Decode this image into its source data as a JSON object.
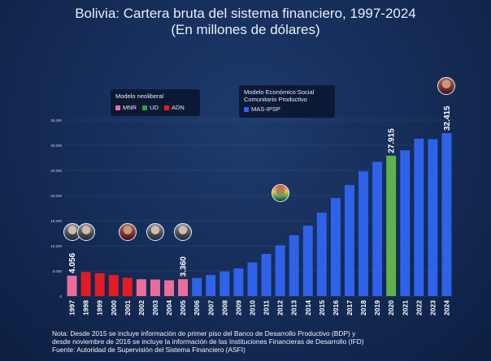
{
  "title_line1": "Bolivia: Cartera bruta del sistema financiero, 1997-2024",
  "title_line2": "(En millones de dólares)",
  "legend": {
    "neoliberal_title": "Modelo neoliberal",
    "neoliberal_items": [
      {
        "label": "MNR",
        "color": "#ec6d9b"
      },
      {
        "label": "UD",
        "color": "#2ea043"
      },
      {
        "label": "ADN",
        "color": "#e31b23"
      }
    ],
    "social_title_line1": "Modelo Económico Social",
    "social_title_line2": "Comunitario Productivo",
    "social_items": [
      {
        "label": "MAS-IPSP",
        "color": "#2f62e8"
      }
    ]
  },
  "notes": [
    "Nota: Desde 2015 se incluye información de primer piso del Banco de Desarrollo Productivo (BDP) y",
    "desde noviembre de 2016 se incluye la información de las Instituciones Financieras de Desarrollo (IFD)",
    "Fuente: Autoridad de Supervisión del Sistema Financiero (ASFI)"
  ],
  "chart_data": {
    "type": "bar",
    "title": "Bolivia: Cartera bruta del sistema financiero, 1997-2024",
    "subtitle": "(En millones de dólares)",
    "categories": [
      "1997",
      "1998",
      "1999",
      "2000",
      "2001",
      "2002",
      "2003",
      "2004",
      "2005",
      "2006",
      "2007",
      "2008",
      "2009",
      "2010",
      "2011",
      "2012",
      "2013",
      "2014",
      "2015",
      "2016",
      "2017",
      "2018",
      "2019",
      "2020",
      "2021",
      "2022",
      "2023",
      "2024"
    ],
    "values": [
      4056,
      4800,
      4550,
      4200,
      3650,
      3350,
      3300,
      3150,
      3360,
      3600,
      4200,
      4900,
      5500,
      6700,
      8400,
      10100,
      12100,
      14000,
      16600,
      19500,
      22100,
      24800,
      26700,
      27915,
      29000,
      31300,
      31200,
      32415
    ],
    "bar_colors": [
      "#ec6d9b",
      "#e31b23",
      "#e31b23",
      "#e31b23",
      "#e31b23",
      "#ec6d9b",
      "#ec6d9b",
      "#ec6d9b",
      "#ec6d9b",
      "#2f62e8",
      "#2f62e8",
      "#2f62e8",
      "#2f62e8",
      "#2f62e8",
      "#2f62e8",
      "#2f62e8",
      "#2f62e8",
      "#2f62e8",
      "#2f62e8",
      "#2f62e8",
      "#2f62e8",
      "#2f62e8",
      "#2f62e8",
      "#5fb14d",
      "#2f62e8",
      "#2f62e8",
      "#2f62e8",
      "#2f62e8"
    ],
    "data_labels": [
      {
        "category": "1997",
        "text": "4.056"
      },
      {
        "category": "2005",
        "text": "3.360"
      },
      {
        "category": "2020",
        "text": "27.915"
      },
      {
        "category": "2024",
        "text": "32.415"
      }
    ],
    "yticks": [
      0,
      5000,
      10000,
      15000,
      20000,
      25000,
      30000,
      35000
    ],
    "ytick_labels": [
      "0",
      "5.000",
      "10.000",
      "15.000",
      "20.000",
      "25.000",
      "30.000",
      "35.000"
    ],
    "ylim": [
      0,
      35000
    ],
    "grid": true,
    "portraits": [
      {
        "category": "1997",
        "style": "p-neutral"
      },
      {
        "category": "1998",
        "style": "p-neutral"
      },
      {
        "category": "2001",
        "style": "p-red"
      },
      {
        "category": "2003",
        "style": "p-neutral"
      },
      {
        "category": "2005",
        "style": "p-neutral"
      },
      {
        "category": "2012",
        "style": "p-flag"
      },
      {
        "category": "2024",
        "style": "p-red"
      }
    ]
  }
}
